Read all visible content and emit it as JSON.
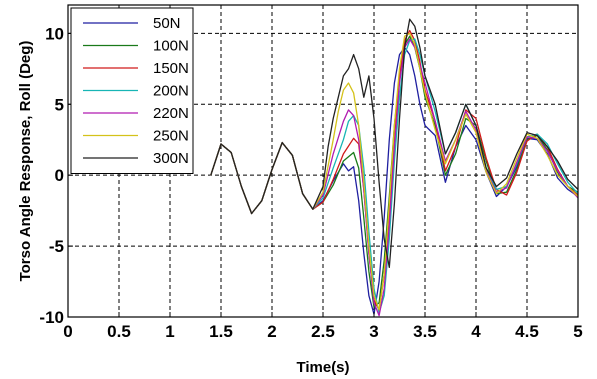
{
  "chart_data": {
    "type": "line",
    "title": "",
    "xlabel": "Time(s)",
    "ylabel": "Torso Angle Response, Roll (Deg)",
    "xlim": [
      0,
      5
    ],
    "ylim": [
      -10,
      12
    ],
    "xticks": [
      "0",
      "0.5",
      "1",
      "1.5",
      "2",
      "2.5",
      "3",
      "3.5",
      "4",
      "4.5",
      "5"
    ],
    "yticks": [
      "-10",
      "-5",
      "0",
      "5",
      "10"
    ],
    "grid": true,
    "legend_position": "top-left",
    "series": [
      {
        "name": "50N",
        "color": "#1f1fa0",
        "x": [
          1.4,
          1.5,
          1.6,
          1.7,
          1.8,
          1.9,
          2.0,
          2.1,
          2.2,
          2.3,
          2.4,
          2.5,
          2.6,
          2.7,
          2.75,
          2.8,
          2.85,
          2.9,
          2.95,
          3.0,
          3.05,
          3.1,
          3.15,
          3.2,
          3.25,
          3.3,
          3.35,
          3.4,
          3.45,
          3.5,
          3.6,
          3.7,
          3.8,
          3.9,
          4.0,
          4.1,
          4.2,
          4.3,
          4.4,
          4.5,
          4.6,
          4.7,
          4.8,
          4.9,
          5.0
        ],
        "y": [
          0.0,
          2.2,
          1.6,
          -0.8,
          -2.7,
          -1.8,
          0.4,
          2.3,
          1.4,
          -1.3,
          -2.4,
          -1.8,
          -0.4,
          0.8,
          0.3,
          0.6,
          -1.8,
          -5.5,
          -8.5,
          -9.8,
          -7.5,
          -3.0,
          2.5,
          6.5,
          8.5,
          9.0,
          8.5,
          7.0,
          5.0,
          3.5,
          2.8,
          -0.5,
          2.0,
          3.5,
          2.5,
          0.2,
          -1.5,
          -0.8,
          0.6,
          2.6,
          2.5,
          1.5,
          -0.2,
          -1.0,
          -1.5
        ]
      },
      {
        "name": "100N",
        "color": "#1a7a1a",
        "x": [
          1.4,
          1.5,
          1.6,
          1.7,
          1.8,
          1.9,
          2.0,
          2.1,
          2.2,
          2.3,
          2.4,
          2.5,
          2.6,
          2.7,
          2.8,
          2.85,
          2.9,
          2.95,
          3.0,
          3.05,
          3.1,
          3.15,
          3.2,
          3.25,
          3.3,
          3.35,
          3.4,
          3.45,
          3.5,
          3.6,
          3.7,
          3.8,
          3.9,
          4.0,
          4.1,
          4.2,
          4.3,
          4.4,
          4.5,
          4.6,
          4.7,
          4.8,
          4.9,
          5.0
        ],
        "y": [
          0.0,
          2.2,
          1.6,
          -0.8,
          -2.7,
          -1.8,
          0.4,
          2.3,
          1.4,
          -1.3,
          -2.4,
          -1.9,
          -0.7,
          1.0,
          1.6,
          0.5,
          -3.0,
          -6.8,
          -9.3,
          -9.0,
          -6.0,
          -1.5,
          3.5,
          7.0,
          9.2,
          9.8,
          9.0,
          7.5,
          5.5,
          3.5,
          0.0,
          1.5,
          4.0,
          3.5,
          1.0,
          -1.3,
          -1.2,
          0.4,
          2.5,
          2.8,
          1.8,
          0.2,
          -0.8,
          -1.2
        ]
      },
      {
        "name": "150N",
        "color": "#d11a1a",
        "x": [
          1.4,
          1.5,
          1.6,
          1.7,
          1.8,
          1.9,
          2.0,
          2.1,
          2.2,
          2.3,
          2.4,
          2.5,
          2.6,
          2.7,
          2.8,
          2.85,
          2.9,
          2.95,
          3.0,
          3.05,
          3.1,
          3.15,
          3.2,
          3.25,
          3.3,
          3.35,
          3.4,
          3.45,
          3.5,
          3.6,
          3.7,
          3.8,
          3.9,
          4.0,
          4.1,
          4.2,
          4.3,
          4.4,
          4.5,
          4.6,
          4.7,
          4.8,
          4.9,
          5.0
        ],
        "y": [
          0.0,
          2.2,
          1.6,
          -0.8,
          -2.7,
          -1.8,
          0.4,
          2.3,
          1.4,
          -1.3,
          -2.4,
          -1.9,
          -0.3,
          1.5,
          2.6,
          2.2,
          -1.0,
          -5.5,
          -8.8,
          -9.5,
          -7.0,
          -2.5,
          3.0,
          7.0,
          9.5,
          10.2,
          9.5,
          8.0,
          6.0,
          3.8,
          0.3,
          2.0,
          4.6,
          4.0,
          1.2,
          -1.0,
          -1.4,
          0.2,
          2.4,
          2.9,
          2.0,
          0.4,
          -0.8,
          -1.4
        ]
      },
      {
        "name": "200N",
        "color": "#17b5b5",
        "x": [
          1.4,
          1.5,
          1.6,
          1.7,
          1.8,
          1.9,
          2.0,
          2.1,
          2.2,
          2.3,
          2.4,
          2.5,
          2.6,
          2.7,
          2.75,
          2.8,
          2.85,
          2.9,
          2.95,
          3.0,
          3.05,
          3.1,
          3.15,
          3.2,
          3.25,
          3.3,
          3.35,
          3.4,
          3.45,
          3.5,
          3.6,
          3.7,
          3.8,
          3.9,
          4.0,
          4.1,
          4.2,
          4.3,
          4.4,
          4.5,
          4.6,
          4.7,
          4.8,
          4.9,
          5.0
        ],
        "y": [
          0.0,
          2.2,
          1.6,
          -0.8,
          -2.7,
          -1.8,
          0.4,
          2.3,
          1.4,
          -1.3,
          -2.4,
          -1.6,
          0.5,
          2.5,
          3.8,
          4.2,
          3.5,
          0.5,
          -4.0,
          -8.0,
          -9.7,
          -8.5,
          -4.5,
          1.0,
          5.5,
          8.5,
          9.5,
          9.6,
          8.5,
          7.0,
          4.5,
          1.5,
          3.0,
          5.0,
          3.5,
          0.5,
          -1.0,
          -0.8,
          0.8,
          2.7,
          2.9,
          2.2,
          0.8,
          -0.5,
          -1.3
        ]
      },
      {
        "name": "220N",
        "color": "#b01ab0",
        "x": [
          1.4,
          1.5,
          1.6,
          1.7,
          1.8,
          1.9,
          2.0,
          2.1,
          2.2,
          2.3,
          2.4,
          2.5,
          2.6,
          2.7,
          2.75,
          2.8,
          2.85,
          2.9,
          2.95,
          3.0,
          3.05,
          3.1,
          3.15,
          3.2,
          3.25,
          3.3,
          3.35,
          3.4,
          3.45,
          3.5,
          3.6,
          3.7,
          3.8,
          3.9,
          4.0,
          4.1,
          4.2,
          4.3,
          4.4,
          4.5,
          4.6,
          4.7,
          4.8,
          4.9,
          5.0
        ],
        "y": [
          0.0,
          2.2,
          1.6,
          -0.8,
          -2.7,
          -1.8,
          0.4,
          2.3,
          1.4,
          -1.3,
          -2.4,
          -1.4,
          1.5,
          3.8,
          4.6,
          4.2,
          2.5,
          -1.0,
          -5.5,
          -9.0,
          -9.9,
          -8.0,
          -3.5,
          2.0,
          6.5,
          9.0,
          9.6,
          9.0,
          7.8,
          6.5,
          3.8,
          1.0,
          2.5,
          4.5,
          3.2,
          0.3,
          -1.2,
          -0.9,
          0.9,
          2.7,
          2.6,
          1.7,
          0.3,
          -0.8,
          -1.6
        ]
      },
      {
        "name": "250N",
        "color": "#d4c21a",
        "x": [
          1.4,
          1.5,
          1.6,
          1.7,
          1.8,
          1.9,
          2.0,
          2.1,
          2.2,
          2.3,
          2.4,
          2.5,
          2.6,
          2.65,
          2.7,
          2.75,
          2.8,
          2.85,
          2.9,
          2.95,
          3.0,
          3.05,
          3.1,
          3.15,
          3.2,
          3.25,
          3.3,
          3.35,
          3.4,
          3.45,
          3.5,
          3.6,
          3.7,
          3.8,
          3.9,
          4.0,
          4.1,
          4.2,
          4.3,
          4.4,
          4.5,
          4.6,
          4.7,
          4.8,
          4.9,
          5.0
        ],
        "y": [
          0.0,
          2.2,
          1.6,
          -0.8,
          -2.7,
          -1.8,
          0.4,
          2.3,
          1.4,
          -1.3,
          -2.4,
          -1.2,
          2.5,
          4.5,
          6.0,
          6.5,
          5.8,
          3.5,
          -0.5,
          -5.0,
          -8.5,
          -9.5,
          -7.0,
          -2.0,
          3.5,
          7.5,
          9.8,
          10.0,
          9.2,
          7.5,
          5.8,
          3.2,
          0.8,
          2.5,
          4.3,
          3.0,
          0.2,
          -1.3,
          -0.6,
          1.2,
          2.9,
          2.6,
          1.4,
          0.0,
          -0.8,
          -1.5
        ]
      },
      {
        "name": "300N",
        "color": "#222222",
        "x": [
          1.4,
          1.5,
          1.6,
          1.7,
          1.8,
          1.9,
          2.0,
          2.1,
          2.2,
          2.3,
          2.4,
          2.5,
          2.55,
          2.6,
          2.65,
          2.7,
          2.75,
          2.8,
          2.85,
          2.9,
          2.95,
          3.0,
          3.05,
          3.1,
          3.15,
          3.2,
          3.25,
          3.3,
          3.35,
          3.4,
          3.45,
          3.5,
          3.6,
          3.7,
          3.8,
          3.9,
          4.0,
          4.1,
          4.2,
          4.3,
          4.4,
          4.5,
          4.6,
          4.7,
          4.8,
          4.9,
          5.0
        ],
        "y": [
          0.0,
          2.2,
          1.6,
          -0.8,
          -2.7,
          -1.8,
          0.4,
          2.3,
          1.4,
          -1.3,
          -2.4,
          -0.8,
          2.0,
          4.0,
          5.5,
          7.0,
          7.5,
          8.5,
          7.5,
          5.5,
          7.0,
          4.0,
          -0.5,
          -4.5,
          -6.5,
          -2.0,
          4.0,
          9.0,
          11.0,
          10.5,
          9.0,
          7.0,
          5.0,
          1.5,
          3.0,
          5.0,
          3.5,
          0.5,
          -0.8,
          -0.2,
          1.5,
          3.0,
          2.8,
          2.0,
          1.0,
          -0.3,
          -1.0
        ]
      }
    ]
  }
}
